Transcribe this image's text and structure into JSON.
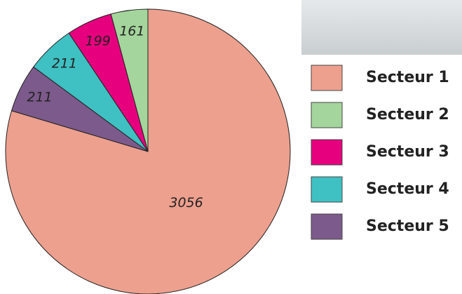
{
  "chart_data": {
    "type": "pie",
    "categories": [
      "Secteur 1",
      "Secteur 2",
      "Secteur 3",
      "Secteur 4",
      "Secteur 5"
    ],
    "values": [
      3056,
      161,
      199,
      211,
      211
    ],
    "colors": [
      "#eda08e",
      "#a4d59c",
      "#e6007e",
      "#3fc0c2",
      "#7c5a8b"
    ],
    "legend": "right"
  }
}
